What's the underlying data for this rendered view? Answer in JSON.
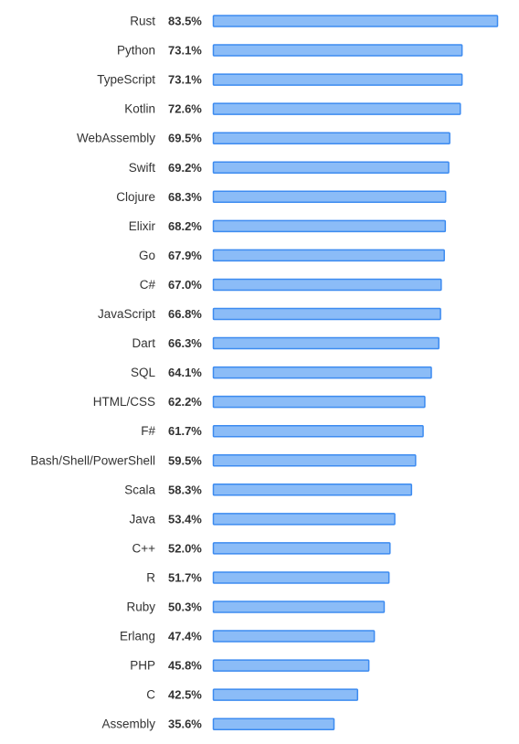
{
  "chart_data": {
    "type": "bar",
    "orientation": "horizontal",
    "categories": [
      "Rust",
      "Python",
      "TypeScript",
      "Kotlin",
      "WebAssembly",
      "Swift",
      "Clojure",
      "Elixir",
      "Go",
      "C#",
      "JavaScript",
      "Dart",
      "SQL",
      "HTML/CSS",
      "F#",
      "Bash/Shell/PowerShell",
      "Scala",
      "Java",
      "C++",
      "R",
      "Ruby",
      "Erlang",
      "PHP",
      "C",
      "Assembly"
    ],
    "values": [
      83.5,
      73.1,
      73.1,
      72.6,
      69.5,
      69.2,
      68.3,
      68.2,
      67.9,
      67.0,
      66.8,
      66.3,
      64.1,
      62.2,
      61.7,
      59.5,
      58.3,
      53.4,
      52.0,
      51.7,
      50.3,
      47.4,
      45.8,
      42.5,
      35.6
    ],
    "value_labels": [
      "83.5%",
      "73.1%",
      "73.1%",
      "72.6%",
      "69.5%",
      "69.2%",
      "68.3%",
      "68.2%",
      "67.9%",
      "67.0%",
      "66.8%",
      "66.3%",
      "64.1%",
      "62.2%",
      "61.7%",
      "59.5%",
      "58.3%",
      "53.4%",
      "52.0%",
      "51.7%",
      "50.3%",
      "47.4%",
      "45.8%",
      "42.5%",
      "35.6%"
    ],
    "unit": "%",
    "grid": false,
    "legend": "none",
    "bar_fill": "#8bbcf7",
    "bar_stroke": "#3d8bf0",
    "text_color": "#333333"
  }
}
